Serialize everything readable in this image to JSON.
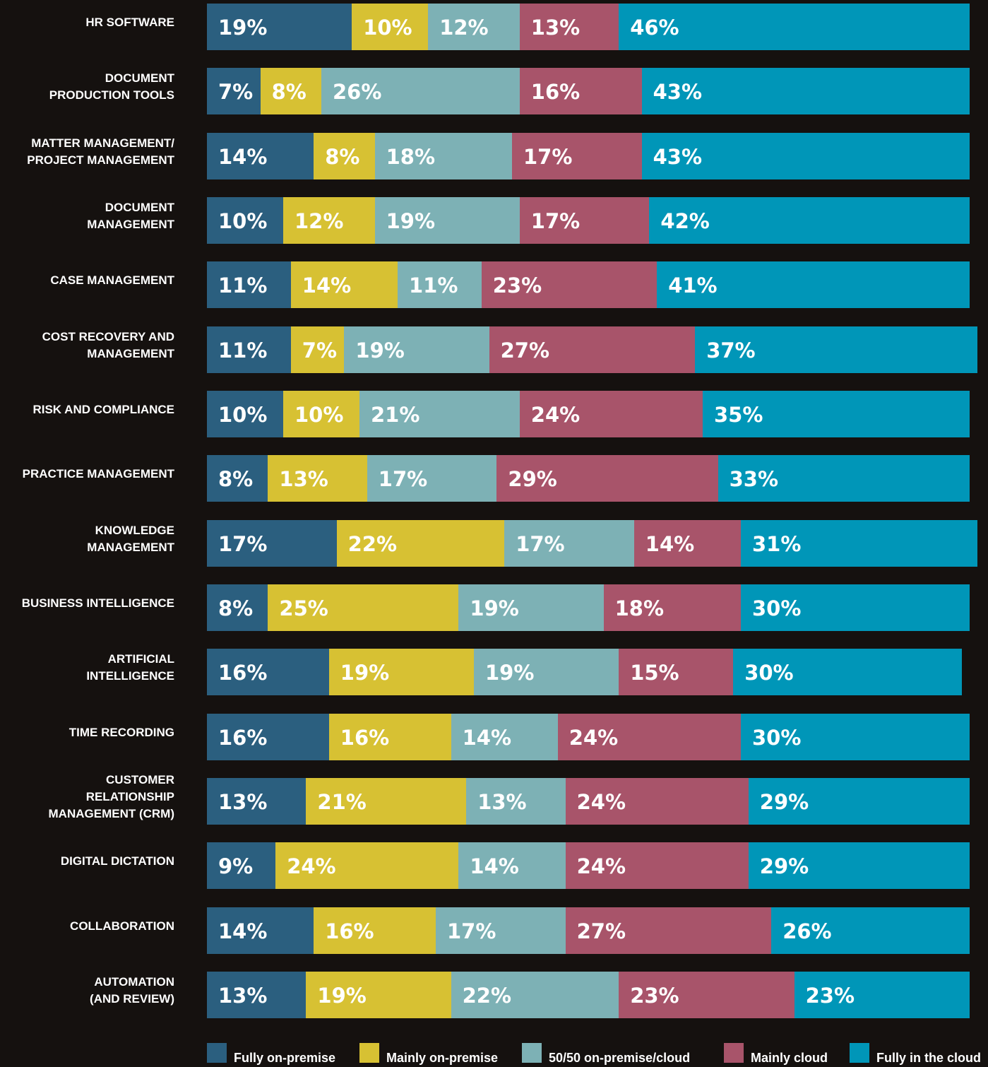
{
  "chart_data": {
    "type": "stacked-bar-horizontal",
    "categories": [
      "HR SOFTWARE",
      "DOCUMENT\nPRODUCTION TOOLS",
      "MATTER MANAGEMENT/\nPROJECT MANAGEMENT",
      "DOCUMENT\nMANAGEMENT",
      "CASE MANAGEMENT",
      "COST RECOVERY AND\nMANAGEMENT",
      "RISK AND COMPLIANCE",
      "PRACTICE MANAGEMENT",
      "KNOWLEDGE\nMANAGEMENT",
      "BUSINESS INTELLIGENCE",
      "ARTIFICIAL\nINTELLIGENCE",
      "TIME RECORDING",
      "CUSTOMER\nRELATIONSHIP\nMANAGEMENT (CRM)",
      "DIGITAL DICTATION",
      "COLLABORATION",
      "AUTOMATION\n(AND REVIEW)"
    ],
    "series": [
      {
        "name": "Fully on-premise",
        "color": "#2b5f7f",
        "values": [
          19,
          7,
          14,
          10,
          11,
          11,
          10,
          8,
          17,
          8,
          16,
          16,
          13,
          9,
          14,
          13
        ],
        "value_labels": [
          "19%",
          "7%",
          "14%",
          "10%",
          "11%",
          "11%",
          "10%",
          "8%",
          "17%",
          "8%",
          "16%",
          "16%",
          "13%",
          "9%",
          "14%",
          "13%"
        ]
      },
      {
        "name": "Mainly on-premise",
        "color": "#d7c133",
        "values": [
          10,
          8,
          8,
          12,
          14,
          7,
          10,
          13,
          22,
          25,
          19,
          16,
          21,
          24,
          16,
          19
        ],
        "value_labels": [
          "10%",
          "8%",
          "8%",
          "12%",
          "14%",
          "7%",
          "10%",
          "13%",
          "22%",
          "25%",
          "19%",
          "16%",
          "21%",
          "24%",
          "16%",
          "19%"
        ]
      },
      {
        "name": "50/50 on-premise/cloud",
        "color": "#7db1b5",
        "values": [
          12,
          26,
          18,
          19,
          11,
          19,
          21,
          17,
          17,
          19,
          19,
          14,
          13,
          14,
          17,
          22
        ],
        "value_labels": [
          "12%",
          "26%",
          "18%",
          "19%",
          "11%",
          "19%",
          "21%",
          "17%",
          "17%",
          "19%",
          "19%",
          "14%",
          "13%",
          "14%",
          "17%",
          "22%"
        ]
      },
      {
        "name": "Mainly cloud",
        "color": "#a8546a",
        "values": [
          13,
          16,
          17,
          17,
          23,
          27,
          24,
          29,
          14,
          18,
          15,
          24,
          24,
          24,
          27,
          23
        ],
        "value_labels": [
          "13%",
          "16%",
          "17%",
          "17%",
          "23%",
          "27%",
          "24%",
          "29%",
          "14%",
          "18%",
          "15%",
          "24%",
          "24%",
          "24%",
          "27%",
          "23%"
        ]
      },
      {
        "name": "Fully in the cloud",
        "color": "#0096b8",
        "values": [
          46,
          43,
          43,
          42,
          41,
          37,
          35,
          33,
          31,
          30,
          30,
          30,
          29,
          29,
          26,
          23
        ],
        "value_labels": [
          "46%",
          "43%",
          "43%",
          "42%",
          "41%",
          "37%",
          "35%",
          "33%",
          "31%",
          "30%",
          "30%",
          "30%",
          "29%",
          "29%",
          "26%",
          "23%"
        ]
      }
    ]
  }
}
